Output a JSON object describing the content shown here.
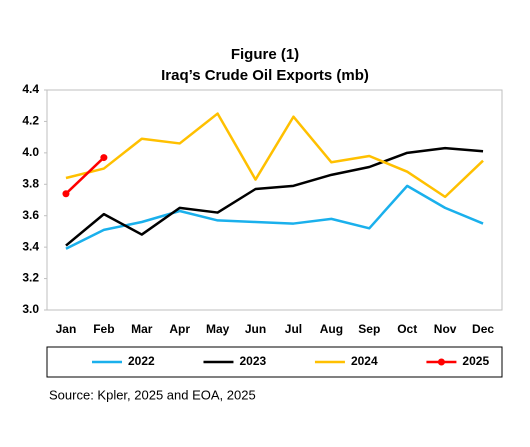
{
  "chart_data": {
    "type": "line",
    "title": "Figure (1)",
    "subtitle": "Iraq’s Crude Oil Exports (mb)",
    "categories": [
      "Jan",
      "Feb",
      "Mar",
      "Apr",
      "May",
      "Jun",
      "Jul",
      "Aug",
      "Sep",
      "Oct",
      "Nov",
      "Dec"
    ],
    "series": [
      {
        "name": "2022",
        "color": "#1ab0ec",
        "values": [
          3.39,
          3.51,
          3.56,
          3.63,
          3.57,
          3.56,
          3.55,
          3.58,
          3.52,
          3.79,
          3.65,
          3.55
        ]
      },
      {
        "name": "2023",
        "color": "#000000",
        "values": [
          3.41,
          3.61,
          3.48,
          3.65,
          3.62,
          3.77,
          3.79,
          3.86,
          3.91,
          4.0,
          4.03,
          4.01
        ]
      },
      {
        "name": "2024",
        "color": "#ffc000",
        "values": [
          3.84,
          3.9,
          4.09,
          4.06,
          4.25,
          3.83,
          4.23,
          3.94,
          3.98,
          3.88,
          3.72,
          3.95
        ]
      },
      {
        "name": "2025",
        "color": "#ff0000",
        "markers": true,
        "values": [
          3.74,
          3.97,
          null,
          null,
          null,
          null,
          null,
          null,
          null,
          null,
          null,
          null
        ]
      }
    ],
    "ylim": [
      3.0,
      4.4
    ],
    "yticks": [
      {
        "value": 3.0,
        "label": "3.0"
      },
      3.2,
      3.4,
      3.6,
      3.8,
      {
        "value": 4.0,
        "label": "4.0"
      },
      4.2,
      4.4
    ],
    "grid": false,
    "legend": "bottom",
    "source": "Source: Kpler, 2025 and EOA, 2025"
  }
}
